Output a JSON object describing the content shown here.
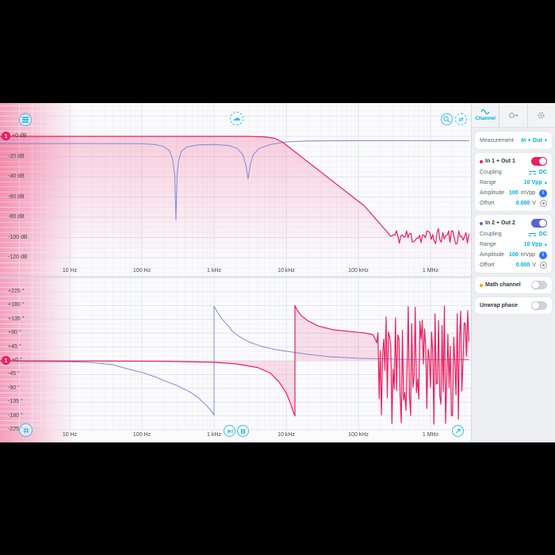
{
  "plot": {
    "marker_label": "1",
    "x_tick_labels": [
      "10 Hz",
      "100 Hz",
      "1 kHz",
      "10 kHz",
      "100 kHz",
      "1 MHz"
    ],
    "x_tick_freqs": [
      10,
      100,
      1000,
      10000,
      100000,
      1000000
    ],
    "mag_y_tick_labels": [
      "+0 dB",
      "-20 dB",
      "-40 dB",
      "-60 dB",
      "-80 dB",
      "-100 dB",
      "-120 dB"
    ],
    "mag_y_tick_values": [
      0,
      -20,
      -40,
      -60,
      -80,
      -100,
      -120
    ],
    "phase_y_tick_labels": [
      "+225 °",
      "+180 °",
      "+135 °",
      "+90 °",
      "+45 °",
      "+0 °",
      "-45 °",
      "-90 °",
      "-135 °",
      "-180 °",
      "-225 °"
    ],
    "phase_y_tick_values": [
      225,
      180,
      135,
      90,
      45,
      0,
      -45,
      -90,
      -135,
      -180,
      -225
    ]
  },
  "chart_data": [
    {
      "type": "line",
      "name": "magnitude",
      "x_scale": "log",
      "x_range_hz": [
        1.05,
        3400000
      ],
      "ylabel": "dB",
      "y_ticks": [
        "+0 dB",
        "-20 dB",
        "-40 dB",
        "-60 dB",
        "-80 dB",
        "-100 dB",
        "-120 dB"
      ],
      "x_ticks": [
        "10 Hz",
        "100 Hz",
        "1 kHz",
        "10 kHz",
        "100 kHz",
        "1 MHz"
      ],
      "series": [
        {
          "name": "In 1 + Out 1",
          "color": "#ee1d5f",
          "fill": "gradient",
          "points": [
            [
              1.05,
              0
            ],
            [
              3000,
              0
            ],
            [
              5000,
              -0.5
            ],
            [
              7000,
              -2
            ],
            [
              9000,
              -6
            ],
            [
              122000,
              -69
            ],
            [
              260000,
              -96
            ]
          ],
          "noise": {
            "from": 280000,
            "to": 3400000,
            "n": 55,
            "mean": -99,
            "spread": 8,
            "seed": 11,
            "clamp": 124
          }
        },
        {
          "name": "In 2 + Out 2",
          "color": "#8089d8",
          "points": [
            [
              1.05,
              -7
            ],
            [
              100,
              -7.2
            ],
            [
              150,
              -8
            ],
            [
              200,
              -10
            ],
            [
              240,
              -14
            ],
            [
              265,
              -22
            ],
            [
              285,
              -38
            ],
            [
              296,
              -83
            ],
            [
              307,
              -40
            ],
            [
              320,
              -25
            ],
            [
              350,
              -15
            ],
            [
              420,
              -10.5
            ],
            [
              600,
              -8.5
            ],
            [
              1000,
              -8
            ],
            [
              1600,
              -9
            ],
            [
              2100,
              -12
            ],
            [
              2500,
              -18
            ],
            [
              2750,
              -28
            ],
            [
              2960,
              -42
            ],
            [
              3200,
              -27
            ],
            [
              3500,
              -18
            ],
            [
              4200,
              -12
            ],
            [
              6000,
              -8
            ],
            [
              10000,
              -5.5
            ],
            [
              20000,
              -4.5
            ],
            [
              100000,
              -4.2
            ],
            [
              3400000,
              -4.2
            ]
          ]
        }
      ]
    },
    {
      "type": "line",
      "name": "phase",
      "x_scale": "log",
      "x_range_hz": [
        1.05,
        3400000
      ],
      "ylabel": "degrees",
      "y_ticks": [
        "+225 °",
        "+180 °",
        "+135 °",
        "+90 °",
        "+45 °",
        "+0 °",
        "-45 °",
        "-90 °",
        "-135 °",
        "-180 °",
        "-225 °"
      ],
      "x_ticks": [
        "10 Hz",
        "100 Hz",
        "1 kHz",
        "10 kHz",
        "100 kHz",
        "1 MHz"
      ],
      "series": [
        {
          "name": "In 1 + Out 1",
          "color": "#ee1d5f",
          "fill": "zero",
          "points": [
            [
              1.05,
              -0.3
            ],
            [
              200,
              -1.5
            ],
            [
              1000,
              -5
            ],
            [
              2000,
              -10
            ],
            [
              4000,
              -22
            ],
            [
              6000,
              -40
            ],
            [
              8000,
              -70
            ],
            [
              10000,
              -105
            ],
            [
              11500,
              -140
            ],
            [
              12600,
              -168
            ],
            [
              13200,
              -180
            ],
            [
              13200,
              180
            ],
            [
              14000,
              168
            ],
            [
              16000,
              148
            ],
            [
              20000,
              130
            ],
            [
              28000,
              113
            ],
            [
              45000,
              101
            ],
            [
              80000,
              95
            ],
            [
              120000,
              91
            ],
            [
              160000,
              85
            ]
          ],
          "noise": {
            "from": 180000,
            "to": 3400000,
            "n": 80,
            "mean": -15,
            "spread": 195,
            "seed": 5,
            "clamp": 220
          }
        },
        {
          "name": "In 2 + Out 2",
          "color": "#8089d8",
          "points": [
            [
              1.05,
              -1
            ],
            [
              10,
              -3
            ],
            [
              20,
              -6
            ],
            [
              40,
              -13
            ],
            [
              62,
              -26
            ],
            [
              100,
              -38
            ],
            [
              150,
              -52
            ],
            [
              220,
              -68
            ],
            [
              300,
              -80
            ],
            [
              450,
              -100
            ],
            [
              600,
              -120
            ],
            [
              800,
              -148
            ],
            [
              950,
              -168
            ],
            [
              1000,
              -178
            ],
            [
              1000,
              178
            ],
            [
              1100,
              160
            ],
            [
              1300,
              135
            ],
            [
              1600,
              112
            ],
            [
              1790,
              96
            ],
            [
              2200,
              80
            ],
            [
              3000,
              62
            ],
            [
              4500,
              47
            ],
            [
              7000,
              37
            ],
            [
              10000,
              31
            ],
            [
              14000,
              26
            ],
            [
              20000,
              21
            ],
            [
              40000,
              13
            ],
            [
              100000,
              8
            ],
            [
              400000,
              5
            ],
            [
              3400000,
              4
            ]
          ]
        }
      ]
    }
  ],
  "icons": {
    "menu": "hamburger-circle",
    "upload": "cloud-upload",
    "zoom": "magnifier",
    "swap_axes": "double-arrow",
    "pan": "grid-move",
    "step": "play-step",
    "pause": "pause",
    "autoscale": "diagonal-arrow",
    "channel_tab": "sine-wave",
    "output_tab": "circle-arrow-out",
    "settings_tab": "gear",
    "coupling": "dc-symbol",
    "amplitude_info": "info-circle",
    "offset_dial": "target-circle"
  },
  "colors": {
    "accent_cyan": "#2cc3ec",
    "trace_red": "#ee1d5f",
    "trace_blue": "#8089d8",
    "toggle_red": "#ef1c5f",
    "toggle_blue": "#5565d2",
    "math_orange": "#f6a21a",
    "sidebar_bg": "#eceef1"
  },
  "sidebar": {
    "tabs": {
      "channel_label": "Channel"
    },
    "measurement_label": "Measurement",
    "measurement_value": "In + Out",
    "channels": [
      {
        "name": "In 1 + Out 1",
        "enabled": true,
        "coupling_label": "Coupling",
        "coupling_value": "DC",
        "range_label": "Range",
        "range_value": "10 Vpp",
        "amplitude_label": "Amplitude",
        "amplitude_value": "100",
        "amplitude_unit": "mVpp",
        "offset_label": "Offset",
        "offset_value": "0.000",
        "offset_unit": "V"
      },
      {
        "name": "In 2 + Out 2",
        "enabled": true,
        "coupling_label": "Coupling",
        "coupling_value": "DC",
        "range_label": "Range",
        "range_value": "10 Vpp",
        "amplitude_label": "Amplitude",
        "amplitude_value": "100",
        "amplitude_unit": "mVpp",
        "offset_label": "Offset",
        "offset_value": "0.000",
        "offset_unit": "V"
      }
    ],
    "math_label": "Math channel",
    "math_enabled": false,
    "unwrap_label": "Unwrap phase",
    "unwrap_enabled": false
  }
}
